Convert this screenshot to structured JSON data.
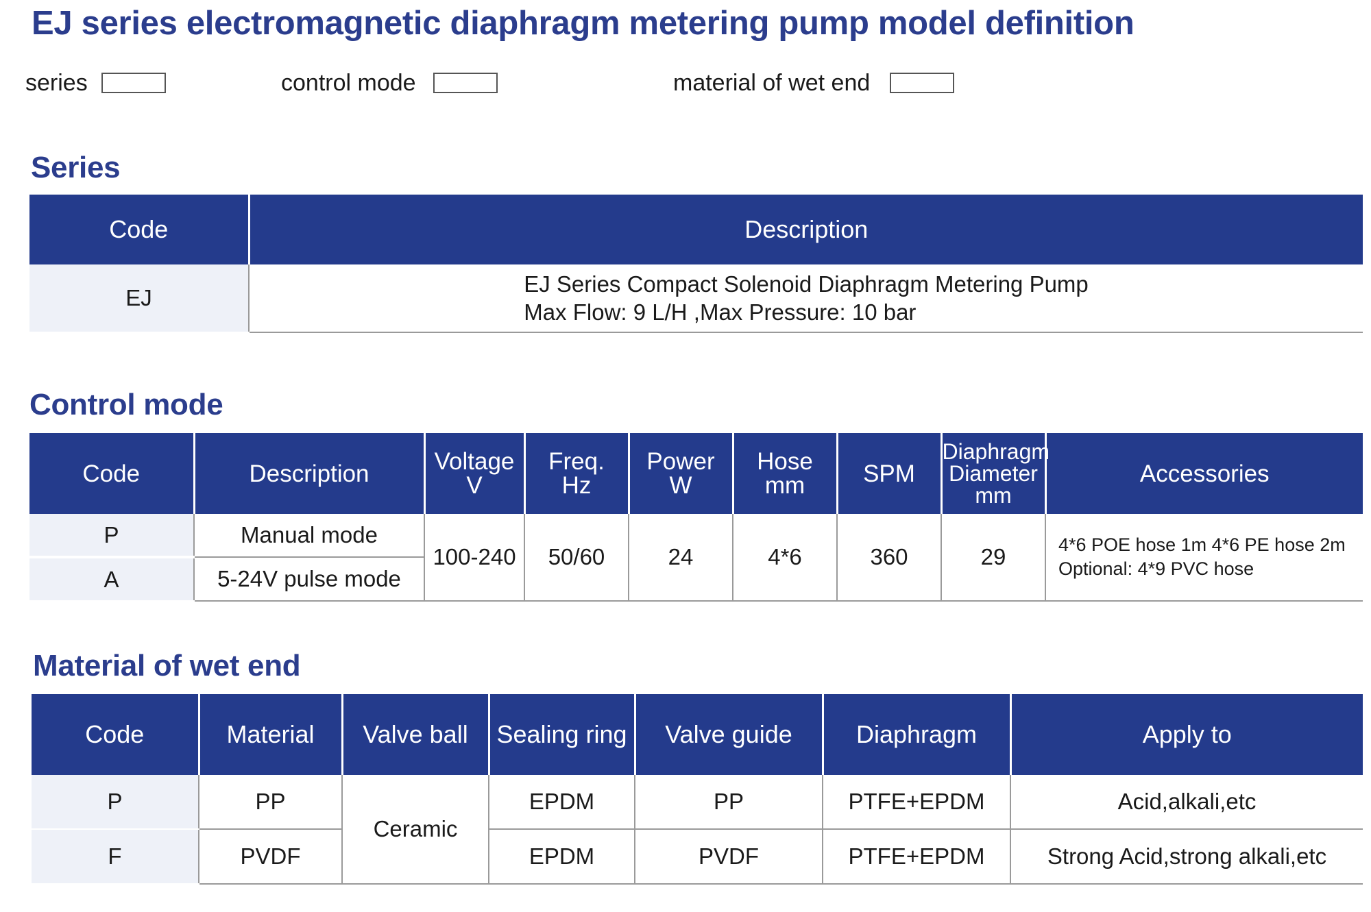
{
  "page_title": "EJ series electromagnetic diaphragm metering pump model definition",
  "model_definition": {
    "series_label": "series",
    "control_mode_label": "control mode",
    "material_label": "material of wet end"
  },
  "series_section": {
    "title": "Series",
    "headers": [
      "Code",
      "Description"
    ],
    "rows": [
      {
        "code": "EJ",
        "description_line1": "EJ Series Compact Solenoid Diaphragm Metering Pump",
        "description_line2": "Max Flow: 9 L/H ,Max Pressure: 10 bar"
      }
    ]
  },
  "control_section": {
    "title": "Control mode",
    "headers": {
      "code": "Code",
      "description": "Description",
      "voltage_1": "Voltage",
      "voltage_2": "V",
      "freq_1": "Freq.",
      "freq_2": "Hz",
      "power_1": "Power",
      "power_2": "W",
      "hose_1": "Hose",
      "hose_2": "mm",
      "spm": "SPM",
      "diaphragm_1": "Diaphragm",
      "diaphragm_2": "Diameter",
      "diaphragm_3": "mm",
      "accessories": "Accessories"
    },
    "rows": [
      {
        "code": "P",
        "description": "Manual mode"
      },
      {
        "code": "A",
        "description": "5-24V pulse mode"
      }
    ],
    "shared": {
      "voltage": "100-240",
      "freq": "50/60",
      "power": "24",
      "hose": "4*6",
      "spm": "360",
      "diaphragm": "29",
      "accessories_line1": "4*6 POE hose 1m 4*6 PE hose 2m",
      "accessories_line2": "Optional: 4*9 PVC hose"
    }
  },
  "material_section": {
    "title": "Material of  wet end",
    "headers": [
      "Code",
      "Material",
      "Valve ball",
      "Sealing ring",
      "Valve guide",
      "Diaphragm",
      "Apply to"
    ],
    "valve_ball": "Ceramic",
    "rows": [
      {
        "code": "P",
        "material": "PP",
        "sealing_ring": "EPDM",
        "valve_guide": "PP",
        "diaphragm": "PTFE+EPDM",
        "apply_to": "Acid,alkali,etc"
      },
      {
        "code": "F",
        "material": "PVDF",
        "sealing_ring": "EPDM",
        "valve_guide": "PVDF",
        "diaphragm": "PTFE+EPDM",
        "apply_to": "Strong Acid,strong alkali,etc"
      }
    ]
  },
  "colors": {
    "title_blue": "#2b3d8d",
    "header_blue": "#243b8c",
    "code_cell_bg": "#eef1f8"
  }
}
